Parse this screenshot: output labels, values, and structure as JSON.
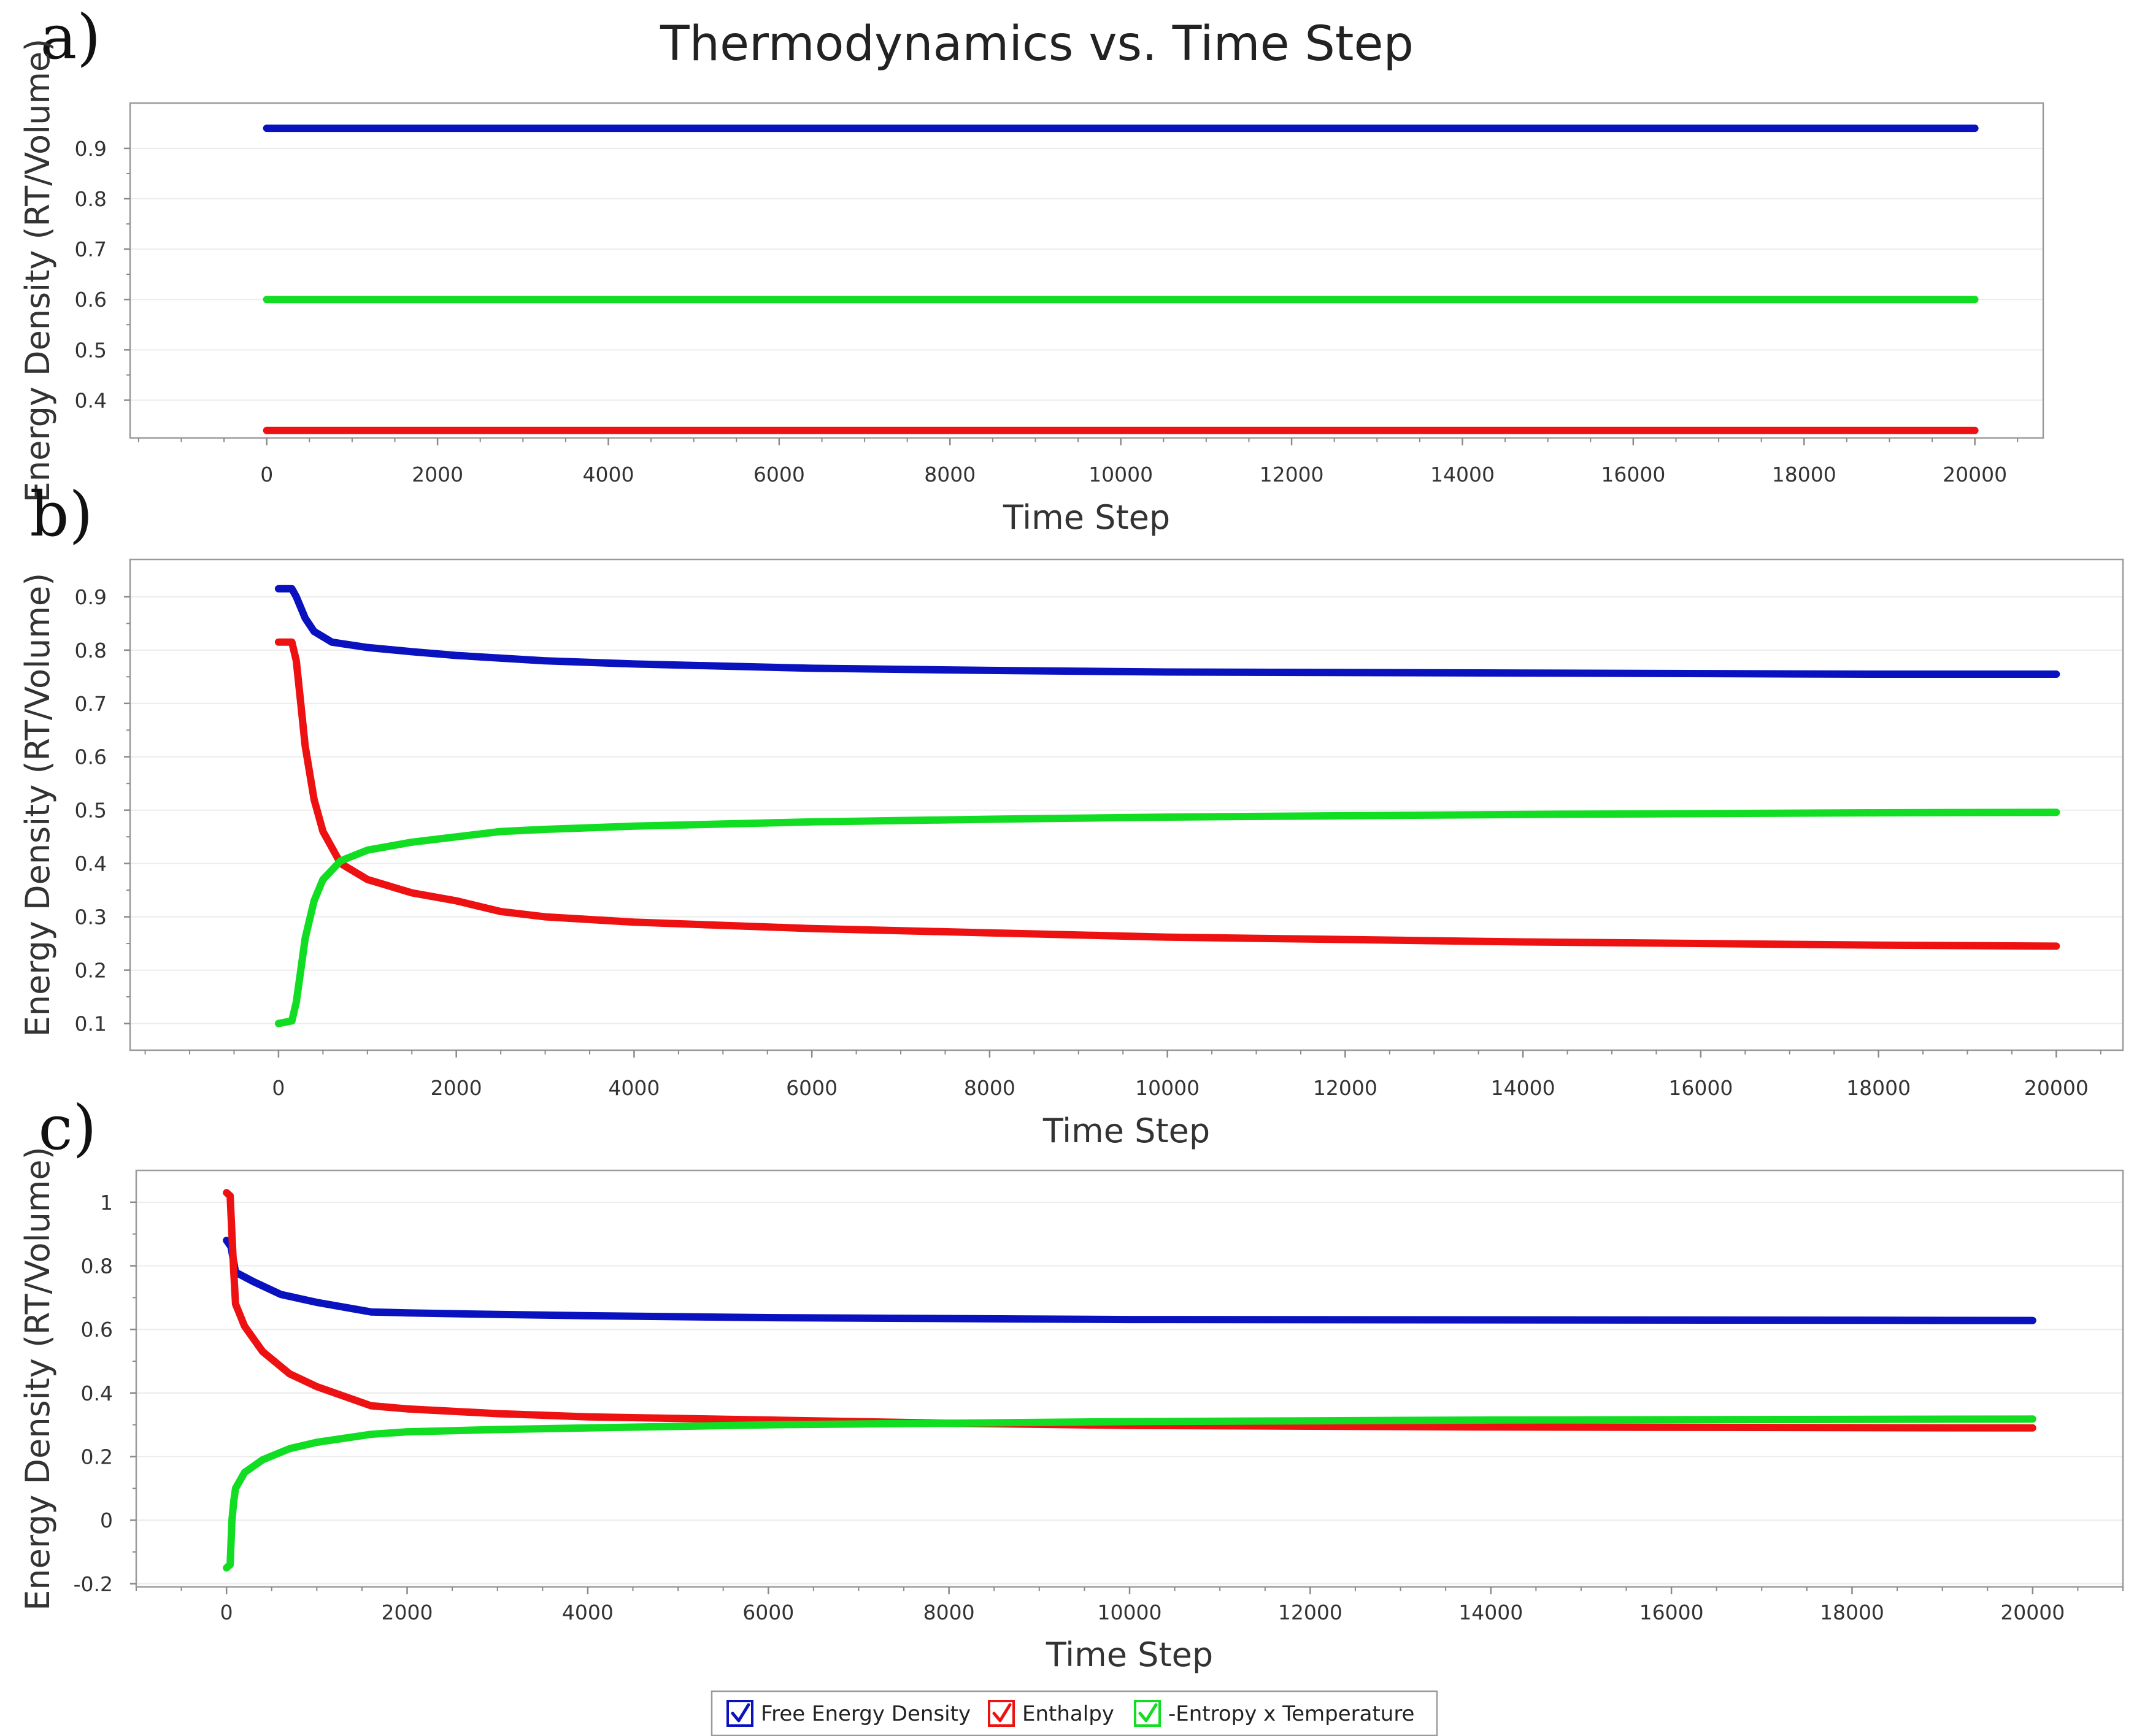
{
  "title": "Thermodynamics vs. Time Step",
  "colors": {
    "free_energy": "#0a12c0",
    "enthalpy": "#ee1111",
    "entropy": "#11dd22"
  },
  "legend": [
    {
      "label": "Free Energy Density",
      "color": "#0a12c0",
      "checked": true
    },
    {
      "label": "Enthalpy",
      "color": "#ee1111",
      "checked": true
    },
    {
      "label": "-Entropy x Temperature",
      "color": "#11dd22",
      "checked": true
    }
  ],
  "chart_data": [
    {
      "panel": "a)",
      "type": "line",
      "xlabel": "Time Step",
      "ylabel": "Energy Density (RT/Volume)",
      "xlim": [
        -1600,
        20800
      ],
      "ylim": [
        0.325,
        0.99
      ],
      "xticks": [
        0,
        2000,
        4000,
        6000,
        8000,
        10000,
        12000,
        14000,
        16000,
        18000,
        20000
      ],
      "yticks": [
        0.4,
        0.5,
        0.6,
        0.7,
        0.8,
        0.9
      ],
      "ytick_labels": [
        "0.4",
        "0.5",
        "0.6",
        "0.7",
        "0.8",
        "0.9"
      ],
      "series": [
        {
          "name": "Free Energy Density",
          "color": "#0a12c0",
          "x": [
            0,
            20000
          ],
          "y": [
            0.94,
            0.94
          ]
        },
        {
          "name": "-Entropy x Temperature",
          "color": "#11dd22",
          "x": [
            0,
            20000
          ],
          "y": [
            0.6,
            0.6
          ]
        },
        {
          "name": "Enthalpy",
          "color": "#ee1111",
          "x": [
            0,
            20000
          ],
          "y": [
            0.34,
            0.34
          ]
        }
      ]
    },
    {
      "panel": "b)",
      "type": "line",
      "xlabel": "Time Step",
      "ylabel": "Energy Density (RT/Volume)",
      "xlim": [
        -1670,
        20750
      ],
      "ylim": [
        0.05,
        0.97
      ],
      "xticks": [
        0,
        2000,
        4000,
        6000,
        8000,
        10000,
        12000,
        14000,
        16000,
        18000,
        20000
      ],
      "yticks": [
        0.1,
        0.2,
        0.3,
        0.4,
        0.5,
        0.6,
        0.7,
        0.8,
        0.9
      ],
      "ytick_labels": [
        "0.1",
        "0.2",
        "0.3",
        "0.4",
        "0.5",
        "0.6",
        "0.7",
        "0.8",
        "0.9"
      ],
      "series": [
        {
          "name": "Free Energy Density",
          "color": "#0a12c0",
          "x": [
            0,
            150,
            200,
            300,
            400,
            600,
            1000,
            1500,
            2000,
            3000,
            4000,
            6000,
            8000,
            10000,
            14000,
            18000,
            20000
          ],
          "y": [
            0.915,
            0.915,
            0.9,
            0.86,
            0.835,
            0.815,
            0.805,
            0.797,
            0.79,
            0.78,
            0.774,
            0.766,
            0.762,
            0.759,
            0.757,
            0.755,
            0.755
          ]
        },
        {
          "name": "Enthalpy",
          "color": "#ee1111",
          "x": [
            0,
            150,
            200,
            250,
            300,
            400,
            500,
            700,
            1000,
            1500,
            2000,
            2500,
            3000,
            4000,
            6000,
            8000,
            10000,
            14000,
            18000,
            20000
          ],
          "y": [
            0.815,
            0.815,
            0.78,
            0.7,
            0.62,
            0.52,
            0.46,
            0.4,
            0.37,
            0.345,
            0.33,
            0.31,
            0.3,
            0.29,
            0.278,
            0.27,
            0.262,
            0.253,
            0.247,
            0.245
          ]
        },
        {
          "name": "-Entropy x Temperature",
          "color": "#11dd22",
          "x": [
            0,
            150,
            200,
            250,
            300,
            400,
            500,
            700,
            1000,
            1500,
            2000,
            2500,
            3000,
            4000,
            6000,
            8000,
            10000,
            14000,
            18000,
            20000
          ],
          "y": [
            0.1,
            0.105,
            0.14,
            0.2,
            0.26,
            0.33,
            0.37,
            0.405,
            0.425,
            0.44,
            0.45,
            0.46,
            0.464,
            0.47,
            0.478,
            0.483,
            0.487,
            0.492,
            0.495,
            0.496
          ]
        }
      ]
    },
    {
      "panel": "c)",
      "type": "line",
      "xlabel": "Time Step",
      "ylabel": "Energy Density (RT/Volume)",
      "xlim": [
        -1000,
        21000
      ],
      "ylim": [
        -0.21,
        1.1
      ],
      "xticks": [
        0,
        2000,
        4000,
        6000,
        8000,
        10000,
        12000,
        14000,
        16000,
        18000,
        20000
      ],
      "yticks": [
        -0.2,
        0,
        0.2,
        0.4,
        0.6,
        0.8,
        1
      ],
      "ytick_labels": [
        "-0.2",
        "0",
        "0.2",
        "0.4",
        "0.6",
        "0.8",
        "1"
      ],
      "series": [
        {
          "name": "Free Energy Density",
          "color": "#0a12c0",
          "x": [
            0,
            50,
            100,
            300,
            600,
            1000,
            1600,
            2000,
            3000,
            4000,
            6000,
            8000,
            10000,
            14000,
            20000
          ],
          "y": [
            0.88,
            0.86,
            0.78,
            0.75,
            0.71,
            0.685,
            0.655,
            0.652,
            0.647,
            0.643,
            0.637,
            0.634,
            0.631,
            0.63,
            0.628
          ]
        },
        {
          "name": "Enthalpy",
          "color": "#ee1111",
          "x": [
            0,
            40,
            60,
            80,
            100,
            200,
            400,
            700,
            1000,
            1600,
            2000,
            3000,
            4000,
            6000,
            8000,
            10000,
            14000,
            20000
          ],
          "y": [
            1.03,
            1.02,
            0.9,
            0.78,
            0.68,
            0.61,
            0.53,
            0.46,
            0.42,
            0.36,
            0.35,
            0.335,
            0.325,
            0.315,
            0.305,
            0.298,
            0.293,
            0.29
          ]
        },
        {
          "name": "-Entropy x Temperature",
          "color": "#11dd22",
          "x": [
            0,
            40,
            60,
            80,
            100,
            200,
            400,
            700,
            1000,
            1600,
            2000,
            3000,
            4000,
            6000,
            8000,
            10000,
            14000,
            20000
          ],
          "y": [
            -0.15,
            -0.14,
            0.0,
            0.06,
            0.1,
            0.15,
            0.19,
            0.225,
            0.245,
            0.27,
            0.278,
            0.285,
            0.29,
            0.3,
            0.305,
            0.31,
            0.315,
            0.318
          ]
        }
      ]
    }
  ]
}
